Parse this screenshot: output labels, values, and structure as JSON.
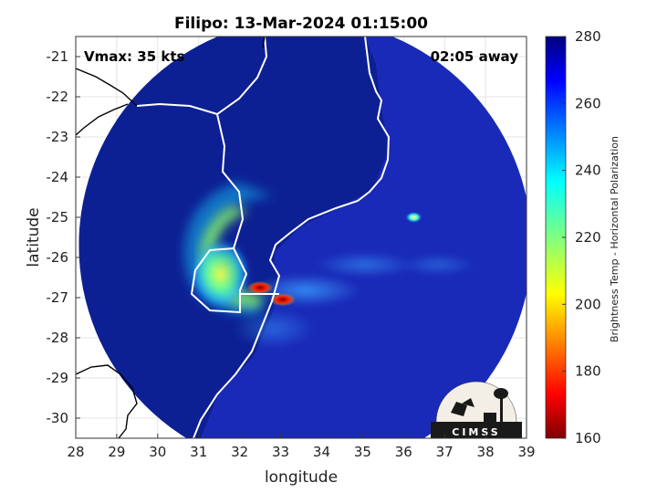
{
  "chart_data": {
    "type": "heatmap",
    "title": "Filipo: 13-Mar-2024 01:15:00",
    "xlabel": "longitude",
    "ylabel": "latitude",
    "xlim": [
      28,
      39
    ],
    "ylim": [
      -30.5,
      -20.5
    ],
    "x_ticks": [
      "28",
      "29",
      "30",
      "31",
      "32",
      "33",
      "34",
      "35",
      "36",
      "37",
      "38",
      "39"
    ],
    "y_ticks": [
      "-21",
      "-22",
      "-23",
      "-24",
      "-25",
      "-26",
      "-27",
      "-28",
      "-29",
      "-30"
    ],
    "annotation_left": "Vmax: 35 kts",
    "annotation_right": "02:05 away",
    "grid": true,
    "colorbar": {
      "label": "Brightness Temp - Horizontal Polarization",
      "range": [
        160,
        280
      ],
      "ticks": [
        "160",
        "180",
        "200",
        "220",
        "240",
        "260",
        "280"
      ],
      "colormap": "jet"
    },
    "swath_center": [
      33.6,
      -25.7
    ],
    "storm_center": [
      32.7,
      -26.9
    ],
    "features": [
      {
        "kind": "cold-core",
        "lon": 32.5,
        "lat": -26.75,
        "value": 175
      },
      {
        "kind": "cold-core",
        "lon": 33.05,
        "lat": -27.05,
        "value": 170
      },
      {
        "kind": "cold-spot",
        "lon": 36.25,
        "lat": -25.0,
        "value": 225
      }
    ],
    "logo_text": "CIMSS"
  },
  "colors": {
    "background_cold": "#1a2ab8",
    "land": "#0c1e8c",
    "coastline": "#ffffff",
    "border_outside": "#000000"
  }
}
